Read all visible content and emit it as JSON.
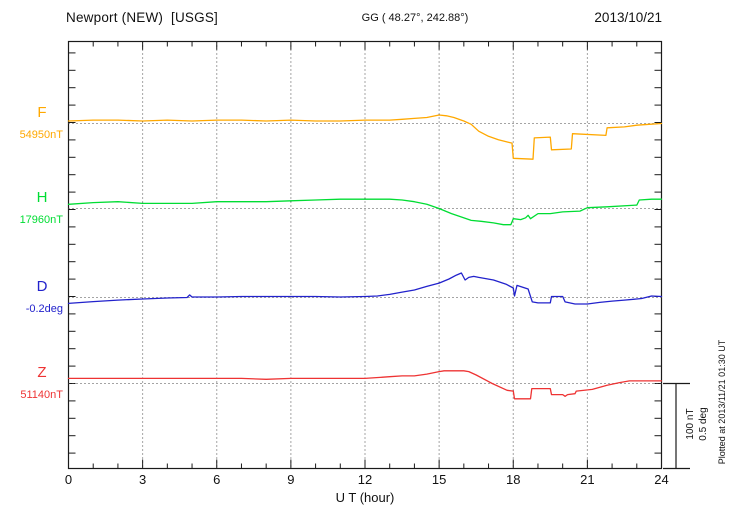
{
  "header": {
    "title": "Newport (NEW)  [USGS]",
    "coordinates": "GG ( 48.27°, 242.88°)",
    "date": "2013/10/21"
  },
  "axis": {
    "xlabel": "U T (hour)"
  },
  "scale_bar": {
    "line1": "100 nT",
    "line2": "0.5 deg"
  },
  "footnote": "Plotted at 2013/11/21 01:30 UT",
  "colors": {
    "axis": "#1a1a1a",
    "grid": "#4a4a4a"
  },
  "chart_data": {
    "type": "line",
    "title": "Newport (NEW) [USGS] magnetogram",
    "subtitle": "GG ( 48.27°, 242.88°)",
    "date": "2013/10/21",
    "xlabel": "U T (hour)",
    "x_range": [
      0,
      24
    ],
    "x_ticks": [
      0,
      3,
      6,
      9,
      12,
      15,
      18,
      21,
      24
    ],
    "grid": "dotted vertical gridlines every 3 h; dotted horizontal baseline for each trace",
    "legend_position": "left",
    "scale": {
      "nT_per_division": 100,
      "deg_per_division": 0.5
    },
    "series": [
      {
        "name": "F",
        "unit": "nT",
        "color": "#FFA800",
        "baseline_label": "54950nT",
        "baseline_value": 54950,
        "points": [
          [
            0,
            54953
          ],
          [
            1,
            54954
          ],
          [
            2,
            54954
          ],
          [
            3,
            54953
          ],
          [
            4,
            54954
          ],
          [
            5,
            54953
          ],
          [
            6,
            54954
          ],
          [
            7,
            54954
          ],
          [
            8,
            54953
          ],
          [
            9,
            54954
          ],
          [
            10,
            54953
          ],
          [
            11,
            54953
          ],
          [
            12,
            54954
          ],
          [
            13,
            54954
          ],
          [
            13.5,
            54955
          ],
          [
            14,
            54956
          ],
          [
            14.5,
            54957
          ],
          [
            15,
            54960
          ],
          [
            15.3,
            54959
          ],
          [
            15.6,
            54957
          ],
          [
            16,
            54953
          ],
          [
            16.3,
            54949
          ],
          [
            16.6,
            54941
          ],
          [
            17,
            54935
          ],
          [
            17.4,
            54931
          ],
          [
            17.8,
            54928
          ],
          [
            17.95,
            54927
          ],
          [
            18,
            54909
          ],
          [
            18.8,
            54908
          ],
          [
            18.85,
            54933
          ],
          [
            19.5,
            54934
          ],
          [
            19.55,
            54919
          ],
          [
            20.35,
            54920
          ],
          [
            20.4,
            54938
          ],
          [
            21.75,
            54936
          ],
          [
            21.8,
            54945
          ],
          [
            22.5,
            54946
          ],
          [
            23,
            54948
          ],
          [
            23.5,
            54949
          ],
          [
            24,
            54950
          ]
        ]
      },
      {
        "name": "H",
        "unit": "nT",
        "color": "#00DD33",
        "baseline_label": "17960nT",
        "baseline_value": 17960,
        "points": [
          [
            0,
            17965
          ],
          [
            1,
            17967
          ],
          [
            2,
            17968
          ],
          [
            3,
            17966
          ],
          [
            4,
            17966
          ],
          [
            5,
            17966
          ],
          [
            6,
            17968
          ],
          [
            7,
            17968
          ],
          [
            8,
            17968
          ],
          [
            9,
            17969
          ],
          [
            10,
            17970
          ],
          [
            11,
            17971
          ],
          [
            12,
            17971
          ],
          [
            13,
            17971
          ],
          [
            13.5,
            17970
          ],
          [
            14,
            17968
          ],
          [
            14.5,
            17965
          ],
          [
            15,
            17960
          ],
          [
            15.5,
            17954
          ],
          [
            15.9,
            17950
          ],
          [
            16.3,
            17946
          ],
          [
            16.7,
            17945
          ],
          [
            17.2,
            17943
          ],
          [
            17.6,
            17941
          ],
          [
            17.9,
            17941
          ],
          [
            18,
            17948
          ],
          [
            18.3,
            17947
          ],
          [
            18.5,
            17949
          ],
          [
            18.6,
            17952
          ],
          [
            18.7,
            17948
          ],
          [
            19,
            17954
          ],
          [
            19.5,
            17954
          ],
          [
            20,
            17956
          ],
          [
            20.7,
            17957
          ],
          [
            21,
            17961
          ],
          [
            21.8,
            17962
          ],
          [
            23,
            17964
          ],
          [
            23.1,
            17970
          ],
          [
            23.6,
            17971
          ],
          [
            24,
            17971
          ]
        ]
      },
      {
        "name": "D",
        "unit": "deg",
        "color": "#2222CC",
        "baseline_label": "-0.2deg",
        "baseline_value": -0.2,
        "points": [
          [
            0,
            -0.235
          ],
          [
            1,
            -0.224
          ],
          [
            2,
            -0.215
          ],
          [
            3,
            -0.209
          ],
          [
            4,
            -0.203
          ],
          [
            4.8,
            -0.2
          ],
          [
            4.9,
            -0.185
          ],
          [
            5,
            -0.197
          ],
          [
            6,
            -0.197
          ],
          [
            7,
            -0.194
          ],
          [
            8,
            -0.194
          ],
          [
            9,
            -0.194
          ],
          [
            10,
            -0.194
          ],
          [
            11,
            -0.197
          ],
          [
            12,
            -0.194
          ],
          [
            12.5,
            -0.191
          ],
          [
            13,
            -0.182
          ],
          [
            13.5,
            -0.168
          ],
          [
            14,
            -0.156
          ],
          [
            14.5,
            -0.135
          ],
          [
            15,
            -0.115
          ],
          [
            15.4,
            -0.091
          ],
          [
            15.7,
            -0.068
          ],
          [
            15.9,
            -0.056
          ],
          [
            16.05,
            -0.097
          ],
          [
            16.2,
            -0.082
          ],
          [
            16.4,
            -0.076
          ],
          [
            16.6,
            -0.082
          ],
          [
            17.2,
            -0.097
          ],
          [
            17.7,
            -0.121
          ],
          [
            18,
            -0.144
          ],
          [
            18.05,
            -0.191
          ],
          [
            18.15,
            -0.129
          ],
          [
            18.6,
            -0.15
          ],
          [
            18.77,
            -0.226
          ],
          [
            19,
            -0.232
          ],
          [
            19.5,
            -0.232
          ],
          [
            19.55,
            -0.194
          ],
          [
            20,
            -0.194
          ],
          [
            20.1,
            -0.226
          ],
          [
            20.5,
            -0.238
          ],
          [
            21,
            -0.238
          ],
          [
            21.5,
            -0.229
          ],
          [
            22,
            -0.221
          ],
          [
            22.5,
            -0.215
          ],
          [
            23,
            -0.209
          ],
          [
            23.2,
            -0.206
          ],
          [
            23.6,
            -0.191
          ],
          [
            24,
            -0.194
          ]
        ]
      },
      {
        "name": "Z",
        "unit": "nT",
        "color": "#EE3333",
        "baseline_label": "51140nT",
        "baseline_value": 51140,
        "points": [
          [
            0,
            51146
          ],
          [
            1,
            51146
          ],
          [
            2,
            51146
          ],
          [
            3,
            51146
          ],
          [
            4,
            51146
          ],
          [
            5,
            51146
          ],
          [
            6,
            51146
          ],
          [
            7,
            51146
          ],
          [
            8,
            51145
          ],
          [
            9,
            51146
          ],
          [
            10,
            51146
          ],
          [
            11,
            51146
          ],
          [
            12,
            51146
          ],
          [
            13,
            51148
          ],
          [
            13.5,
            51149
          ],
          [
            14,
            51149
          ],
          [
            14.5,
            51151
          ],
          [
            15,
            51154
          ],
          [
            15.2,
            51155
          ],
          [
            16,
            51155
          ],
          [
            16.2,
            51154
          ],
          [
            16.5,
            51150
          ],
          [
            17.15,
            51140
          ],
          [
            17.75,
            51132
          ],
          [
            18,
            51131
          ],
          [
            18.05,
            51122
          ],
          [
            18.7,
            51122
          ],
          [
            18.75,
            51134
          ],
          [
            19.5,
            51134
          ],
          [
            19.55,
            51127
          ],
          [
            20,
            51127
          ],
          [
            20.1,
            51125
          ],
          [
            20.2,
            51127
          ],
          [
            20.5,
            51128
          ],
          [
            20.55,
            51131
          ],
          [
            21.2,
            51133
          ],
          [
            21.8,
            51138
          ],
          [
            22.3,
            51141
          ],
          [
            22.7,
            51143
          ],
          [
            23.5,
            51143
          ],
          [
            24,
            51143
          ]
        ]
      }
    ]
  }
}
